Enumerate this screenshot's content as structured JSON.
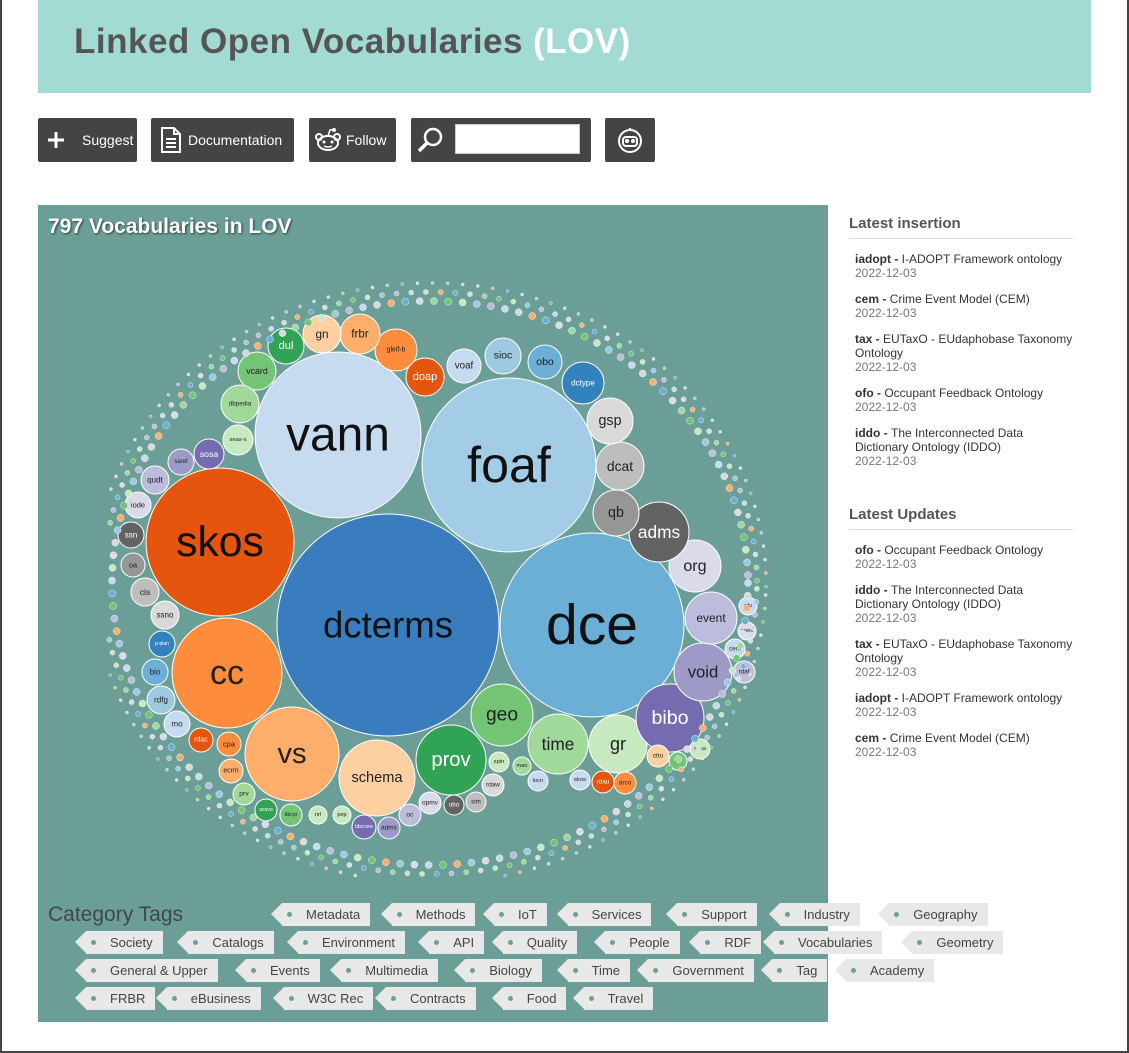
{
  "header": {
    "title": "Linked Open Vocabularies",
    "acronym": "(LOV)"
  },
  "toolbar": {
    "suggest_label": "Suggest",
    "documentation_label": "Documentation",
    "follow_label": "Follow",
    "search_value": ""
  },
  "main": {
    "count_text": "797 Vocabularies in LOV",
    "bubbles": [
      {
        "label": "dcterms",
        "color": "#3a7dbf"
      },
      {
        "label": "dce",
        "color": "#6baed6"
      },
      {
        "label": "foaf",
        "color": "#a3cce6"
      },
      {
        "label": "vann",
        "color": "#c6dbef"
      },
      {
        "label": "skos",
        "color": "#e6550d"
      },
      {
        "label": "cc",
        "color": "#fd8d3c"
      },
      {
        "label": "vs",
        "color": "#fdae6b"
      },
      {
        "label": "schema",
        "color": "#fdd0a2"
      },
      {
        "label": "prov",
        "color": "#31a354"
      },
      {
        "label": "geo",
        "color": "#74c476"
      },
      {
        "label": "time",
        "color": "#a1d99b"
      },
      {
        "label": "gr",
        "color": "#c7e9c0"
      },
      {
        "label": "bibo",
        "color": "#756bb1"
      },
      {
        "label": "void",
        "color": "#9e9ac8"
      },
      {
        "label": "event",
        "color": "#bcbddc"
      },
      {
        "label": "org",
        "color": "#dadaeb"
      },
      {
        "label": "adms",
        "color": "#636363"
      },
      {
        "label": "qb",
        "color": "#969696"
      },
      {
        "label": "dcat",
        "color": "#bdbdbd"
      },
      {
        "label": "gsp",
        "color": "#d9d9d9"
      },
      {
        "label": "dctype",
        "color": "#3182bd"
      },
      {
        "label": "obo",
        "color": "#6baed6"
      },
      {
        "label": "sioc",
        "color": "#9ecae1"
      },
      {
        "label": "voaf",
        "color": "#c6dbef"
      },
      {
        "label": "doap",
        "color": "#e6550d"
      },
      {
        "label": "gleif-b",
        "color": "#fd8d3c"
      },
      {
        "label": "frbr",
        "color": "#fdae6b"
      },
      {
        "label": "gn",
        "color": "#fdd0a2"
      },
      {
        "label": "dul",
        "color": "#31a354"
      },
      {
        "label": "vcard",
        "color": "#74c476"
      },
      {
        "label": "dbpedia",
        "color": "#a1d99b"
      },
      {
        "label": "seas-s",
        "color": "#c7e9c0"
      },
      {
        "label": "sosa",
        "color": "#756bb1"
      },
      {
        "label": "saref",
        "color": "#9e9ac8"
      },
      {
        "label": "qudt",
        "color": "#bcbddc"
      },
      {
        "label": "iode",
        "color": "#dadaeb"
      },
      {
        "label": "ssn",
        "color": "#636363"
      },
      {
        "label": "oa",
        "color": "#969696"
      },
      {
        "label": "cis",
        "color": "#bdbdbd"
      },
      {
        "label": "ssno",
        "color": "#d9d9d9"
      },
      {
        "label": "p-plan",
        "color": "#3182bd"
      },
      {
        "label": "bio",
        "color": "#6baed6"
      },
      {
        "label": "rdfg",
        "color": "#9ecae1"
      },
      {
        "label": "mo",
        "color": "#c6dbef"
      },
      {
        "label": "rdac",
        "color": "#e6550d"
      },
      {
        "label": "cpa",
        "color": "#fd8d3c"
      },
      {
        "label": "ecrm",
        "color": "#fdae6b"
      },
      {
        "label": "prv",
        "color": "#a1d99b"
      },
      {
        "label": "scovo",
        "color": "#31a354"
      },
      {
        "label": "bbcpr",
        "color": "#74c476"
      },
      {
        "label": "nrl",
        "color": "#c7e9c0"
      },
      {
        "label": "pep",
        "color": "#c7e9c0"
      },
      {
        "label": "bbccore",
        "color": "#756bb1"
      },
      {
        "label": "adms",
        "color": "#9e9ac8"
      },
      {
        "label": "oc",
        "color": "#bcbddc"
      },
      {
        "label": "opmv",
        "color": "#dadaeb"
      },
      {
        "label": "obo",
        "color": "#636363"
      },
      {
        "label": "sim",
        "color": "#bdbdbd"
      },
      {
        "label": "rdaw",
        "color": "#d9d9d9"
      },
      {
        "label": "spin",
        "color": "#c7e9c0"
      },
      {
        "label": "mao",
        "color": "#a1d99b"
      },
      {
        "label": "locn",
        "color": "#c6dbef"
      },
      {
        "label": "skos",
        "color": "#c6dbef"
      },
      {
        "label": "rdau",
        "color": "#e6550d"
      },
      {
        "label": "arco",
        "color": "#fd8d3c"
      },
      {
        "label": "ctto",
        "color": "#fdd0a2"
      },
      {
        "label": "pc",
        "color": "#74c476"
      },
      {
        "label": "rdaa",
        "color": "#c7e9c0"
      },
      {
        "label": "rdaf",
        "color": "#bcbddc"
      },
      {
        "label": "cem",
        "color": "#c6dbef"
      },
      {
        "label": "vaem",
        "color": "#dadaeb"
      },
      {
        "label": "situ",
        "color": "#c6dbef"
      },
      {
        "label": "gsp",
        "color": "#d9d9d9"
      }
    ]
  },
  "categories": {
    "title": "Category Tags",
    "tags": [
      "Metadata",
      "Methods",
      "IoT",
      "Services",
      "Support",
      "Industry",
      "Geography",
      "Society",
      "Catalogs",
      "Environment",
      "API",
      "Quality",
      "People",
      "RDF",
      "Vocabularies",
      "Geometry",
      "General & Upper",
      "Events",
      "Multimedia",
      "Biology",
      "Time",
      "Government",
      "Tag",
      "Academy",
      "FRBR",
      "eBusiness",
      "W3C Rec",
      "Contracts",
      "Food",
      "Travel"
    ]
  },
  "sidebar": {
    "latest_insertion_title": "Latest insertion",
    "latest_insertion": [
      {
        "prefix": "iadopt -",
        "title": "I-ADOPT Framework ontology",
        "date": "2022-12-03"
      },
      {
        "prefix": "cem -",
        "title": "Crime Event Model (CEM)",
        "date": "2022-12-03"
      },
      {
        "prefix": "tax -",
        "title": "EUTaxO - EUdaphobase Taxonomy Ontology",
        "date": "2022-12-03"
      },
      {
        "prefix": "ofo -",
        "title": "Occupant Feedback Ontology",
        "date": "2022-12-03"
      },
      {
        "prefix": "iddo -",
        "title": "The Interconnected Data Dictionary Ontology (IDDO)",
        "date": "2022-12-03"
      }
    ],
    "latest_updates_title": "Latest Updates",
    "latest_updates": [
      {
        "prefix": "ofo -",
        "title": "Occupant Feedback Ontology",
        "date": "2022-12-03"
      },
      {
        "prefix": "iddo -",
        "title": "The Interconnected Data Dictionary Ontology (IDDO)",
        "date": "2022-12-03"
      },
      {
        "prefix": "tax -",
        "title": "EUTaxO - EUdaphobase Taxonomy Ontology",
        "date": "2022-12-03"
      },
      {
        "prefix": "iadopt -",
        "title": "I-ADOPT Framework ontology",
        "date": "2022-12-03"
      },
      {
        "prefix": "cem -",
        "title": "Crime Event Model (CEM)",
        "date": "2022-12-03"
      }
    ]
  }
}
